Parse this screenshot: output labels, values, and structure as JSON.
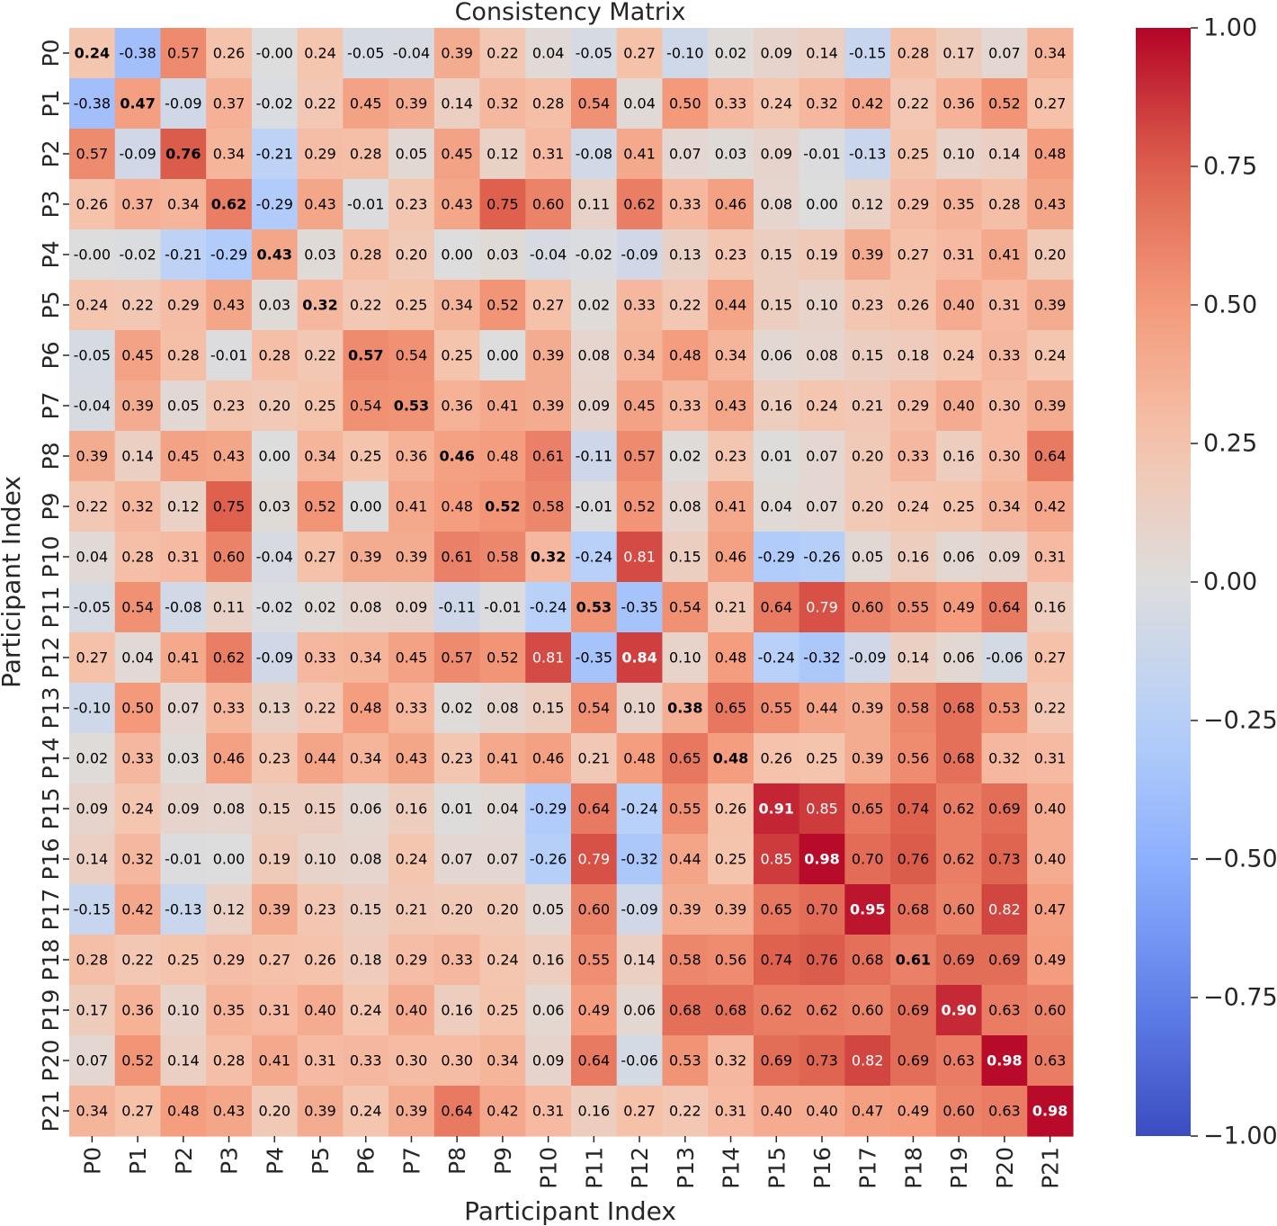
{
  "chart_data": {
    "type": "heatmap",
    "title": "Consistency Matrix",
    "xlabel": "Participant Index",
    "ylabel": "Participant Index",
    "labels": [
      "P0",
      "P1",
      "P2",
      "P3",
      "P4",
      "P5",
      "P6",
      "P7",
      "P8",
      "P9",
      "P10",
      "P11",
      "P12",
      "P13",
      "P14",
      "P15",
      "P16",
      "P17",
      "P18",
      "P19",
      "P20",
      "P21"
    ],
    "values": [
      [
        0.24,
        -0.38,
        0.57,
        0.26,
        -0.0,
        0.24,
        -0.05,
        -0.04,
        0.39,
        0.22,
        0.04,
        -0.05,
        0.27,
        -0.1,
        0.02,
        0.09,
        0.14,
        -0.15,
        0.28,
        0.17,
        0.07,
        0.34
      ],
      [
        -0.38,
        0.47,
        -0.09,
        0.37,
        -0.02,
        0.22,
        0.45,
        0.39,
        0.14,
        0.32,
        0.28,
        0.54,
        0.04,
        0.5,
        0.33,
        0.24,
        0.32,
        0.42,
        0.22,
        0.36,
        0.52,
        0.27
      ],
      [
        0.57,
        -0.09,
        0.76,
        0.34,
        -0.21,
        0.29,
        0.28,
        0.05,
        0.45,
        0.12,
        0.31,
        -0.08,
        0.41,
        0.07,
        0.03,
        0.09,
        -0.01,
        -0.13,
        0.25,
        0.1,
        0.14,
        0.48
      ],
      [
        0.26,
        0.37,
        0.34,
        0.62,
        -0.29,
        0.43,
        -0.01,
        0.23,
        0.43,
        0.75,
        0.6,
        0.11,
        0.62,
        0.33,
        0.46,
        0.08,
        0.0,
        0.12,
        0.29,
        0.35,
        0.28,
        0.43
      ],
      [
        -0.0,
        -0.02,
        -0.21,
        -0.29,
        0.43,
        0.03,
        0.28,
        0.2,
        0.0,
        0.03,
        -0.04,
        -0.02,
        -0.09,
        0.13,
        0.23,
        0.15,
        0.19,
        0.39,
        0.27,
        0.31,
        0.41,
        0.2
      ],
      [
        0.24,
        0.22,
        0.29,
        0.43,
        0.03,
        0.32,
        0.22,
        0.25,
        0.34,
        0.52,
        0.27,
        0.02,
        0.33,
        0.22,
        0.44,
        0.15,
        0.1,
        0.23,
        0.26,
        0.4,
        0.31,
        0.39
      ],
      [
        -0.05,
        0.45,
        0.28,
        -0.01,
        0.28,
        0.22,
        0.57,
        0.54,
        0.25,
        0.0,
        0.39,
        0.08,
        0.34,
        0.48,
        0.34,
        0.06,
        0.08,
        0.15,
        0.18,
        0.24,
        0.33,
        0.24
      ],
      [
        -0.04,
        0.39,
        0.05,
        0.23,
        0.2,
        0.25,
        0.54,
        0.53,
        0.36,
        0.41,
        0.39,
        0.09,
        0.45,
        0.33,
        0.43,
        0.16,
        0.24,
        0.21,
        0.29,
        0.4,
        0.3,
        0.39
      ],
      [
        0.39,
        0.14,
        0.45,
        0.43,
        0.0,
        0.34,
        0.25,
        0.36,
        0.46,
        0.48,
        0.61,
        -0.11,
        0.57,
        0.02,
        0.23,
        0.01,
        0.07,
        0.2,
        0.33,
        0.16,
        0.3,
        0.64
      ],
      [
        0.22,
        0.32,
        0.12,
        0.75,
        0.03,
        0.52,
        0.0,
        0.41,
        0.48,
        0.52,
        0.58,
        -0.01,
        0.52,
        0.08,
        0.41,
        0.04,
        0.07,
        0.2,
        0.24,
        0.25,
        0.34,
        0.42
      ],
      [
        0.04,
        0.28,
        0.31,
        0.6,
        -0.04,
        0.27,
        0.39,
        0.39,
        0.61,
        0.58,
        0.32,
        -0.24,
        0.81,
        0.15,
        0.46,
        -0.29,
        -0.26,
        0.05,
        0.16,
        0.06,
        0.09,
        0.31
      ],
      [
        -0.05,
        0.54,
        -0.08,
        0.11,
        -0.02,
        0.02,
        0.08,
        0.09,
        -0.11,
        -0.01,
        -0.24,
        0.53,
        -0.35,
        0.54,
        0.21,
        0.64,
        0.79,
        0.6,
        0.55,
        0.49,
        0.64,
        0.16
      ],
      [
        0.27,
        0.04,
        0.41,
        0.62,
        -0.09,
        0.33,
        0.34,
        0.45,
        0.57,
        0.52,
        0.81,
        -0.35,
        0.84,
        0.1,
        0.48,
        -0.24,
        -0.32,
        -0.09,
        0.14,
        0.06,
        -0.06,
        0.27
      ],
      [
        -0.1,
        0.5,
        0.07,
        0.33,
        0.13,
        0.22,
        0.48,
        0.33,
        0.02,
        0.08,
        0.15,
        0.54,
        0.1,
        0.38,
        0.65,
        0.55,
        0.44,
        0.39,
        0.58,
        0.68,
        0.53,
        0.22
      ],
      [
        0.02,
        0.33,
        0.03,
        0.46,
        0.23,
        0.44,
        0.34,
        0.43,
        0.23,
        0.41,
        0.46,
        0.21,
        0.48,
        0.65,
        0.48,
        0.26,
        0.25,
        0.39,
        0.56,
        0.68,
        0.32,
        0.31
      ],
      [
        0.09,
        0.24,
        0.09,
        0.08,
        0.15,
        0.15,
        0.06,
        0.16,
        0.01,
        0.04,
        -0.29,
        0.64,
        -0.24,
        0.55,
        0.26,
        0.91,
        0.85,
        0.65,
        0.74,
        0.62,
        0.69,
        0.4
      ],
      [
        0.14,
        0.32,
        -0.01,
        0.0,
        0.19,
        0.1,
        0.08,
        0.24,
        0.07,
        0.07,
        -0.26,
        0.79,
        -0.32,
        0.44,
        0.25,
        0.85,
        0.98,
        0.7,
        0.76,
        0.62,
        0.73,
        0.4
      ],
      [
        -0.15,
        0.42,
        -0.13,
        0.12,
        0.39,
        0.23,
        0.15,
        0.21,
        0.2,
        0.2,
        0.05,
        0.6,
        -0.09,
        0.39,
        0.39,
        0.65,
        0.7,
        0.95,
        0.68,
        0.6,
        0.82,
        0.47
      ],
      [
        0.28,
        0.22,
        0.25,
        0.29,
        0.27,
        0.26,
        0.18,
        0.29,
        0.33,
        0.24,
        0.16,
        0.55,
        0.14,
        0.58,
        0.56,
        0.74,
        0.76,
        0.68,
        0.61,
        0.69,
        0.69,
        0.49
      ],
      [
        0.17,
        0.36,
        0.1,
        0.35,
        0.31,
        0.4,
        0.24,
        0.4,
        0.16,
        0.25,
        0.06,
        0.49,
        0.06,
        0.68,
        0.68,
        0.62,
        0.62,
        0.6,
        0.69,
        0.9,
        0.63,
        0.6
      ],
      [
        0.07,
        0.52,
        0.14,
        0.28,
        0.41,
        0.31,
        0.33,
        0.3,
        0.3,
        0.34,
        0.09,
        0.64,
        -0.06,
        0.53,
        0.32,
        0.69,
        0.73,
        0.82,
        0.69,
        0.63,
        0.98,
        0.63
      ],
      [
        0.34,
        0.27,
        0.48,
        0.43,
        0.2,
        0.39,
        0.24,
        0.39,
        0.64,
        0.42,
        0.31,
        0.16,
        0.27,
        0.22,
        0.31,
        0.4,
        0.4,
        0.47,
        0.49,
        0.6,
        0.63,
        0.98
      ]
    ],
    "value_range": [
      -1.0,
      1.0
    ],
    "colormap": "coolwarm",
    "colorbar_ticks": [
      "1.00",
      "0.75",
      "0.50",
      "0.25",
      "0.00",
      "−0.25",
      "−0.50",
      "−0.75",
      "−1.00"
    ],
    "colorbar_tick_values": [
      1.0,
      0.75,
      0.5,
      0.25,
      0.0,
      -0.25,
      -0.5,
      -0.75,
      -1.0
    ],
    "diagonal_labels_bold": true,
    "grid": false,
    "legend": "colorbar-right"
  }
}
